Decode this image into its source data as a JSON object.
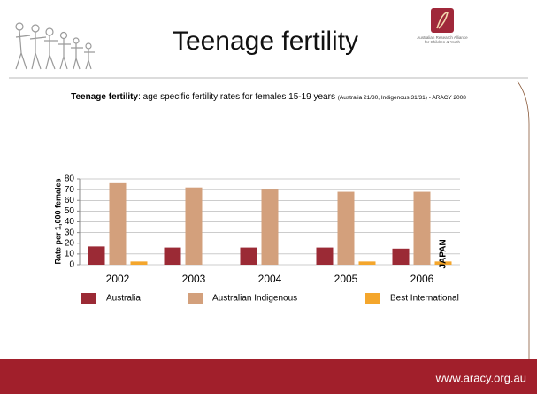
{
  "slide": {
    "title": "Teenage fertility",
    "logo_text": "Australian Research Alliance for Children & Youth",
    "subtitle_bold": "Teenage fertility",
    "subtitle": ": age specific fertility rates for females 15-19 years ",
    "subtitle_note": "(Australia 21/30, Indigenous 31/31)  - ARACY 2008",
    "footer": "www.aracy.org.au"
  },
  "chart_data": {
    "type": "bar",
    "categories": [
      "2002",
      "2003",
      "2004",
      "2005",
      "2006"
    ],
    "series": [
      {
        "name": "Australia",
        "color": "#9b2a35",
        "values": [
          17,
          16,
          16,
          16,
          15
        ]
      },
      {
        "name": "Australian Indigenous",
        "color": "#d3a07c",
        "values": [
          76,
          72,
          70,
          68,
          68
        ]
      },
      {
        "name": "Best International",
        "color": "#f4a62c",
        "values": [
          3,
          null,
          null,
          3,
          3
        ]
      }
    ],
    "ylabel": "Rate per 1,000 females",
    "ylim": [
      0,
      80
    ],
    "yticks": [
      0,
      10,
      20,
      30,
      40,
      50,
      60,
      70,
      80
    ],
    "grid": true,
    "annotation": "JAPAN"
  }
}
